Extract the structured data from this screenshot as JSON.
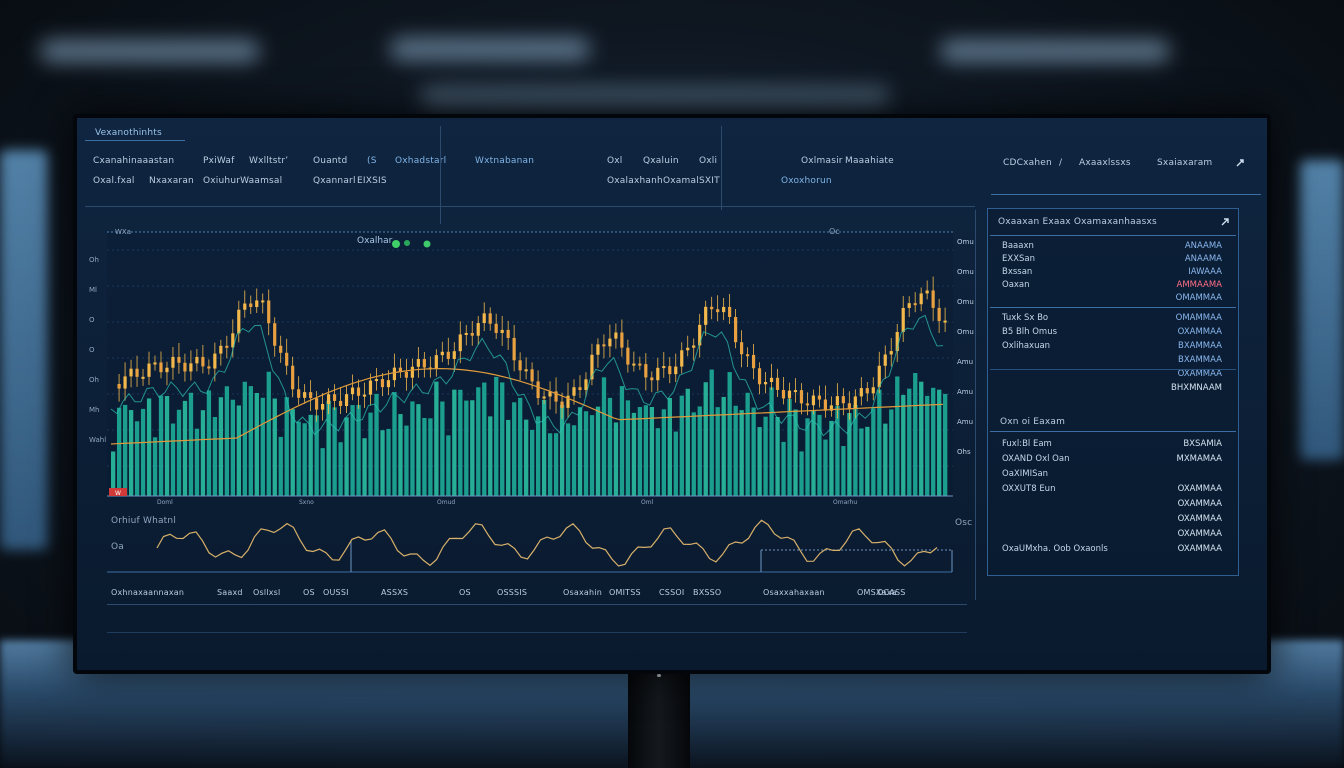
{
  "header": {
    "brand": "Vexanothinhts",
    "row1": [
      "Cxanahinaaastan",
      "PxiWaf",
      "Wxlltstr’",
      "Ouantd",
      "(S",
      "Oxhadstarl",
      "Wxtnabanan",
      "Oxl",
      "Qxaluin",
      "Oxli",
      "Oxlmasir",
      "Maaahiate"
    ],
    "row2": [
      "Oxal.fxal",
      "Nxaxaran",
      "OxiuhurWaamsal",
      "Qxannarl",
      "EIXSIS",
      "Oxalaxhanh",
      "Oxamal",
      "SXIT",
      "Oxoxhorun"
    ],
    "right_tabs": [
      "CDCxahen",
      "/",
      "Axaaxlssxs",
      "Sxaiaxaram"
    ],
    "panel_title": "Oxaaxan Exaax Oxamaxanhaasxs"
  },
  "main_chart": {
    "legend_label": "Oxalhar",
    "top_marker": "Oc",
    "corner_label": "WXa",
    "badge": "W",
    "y_left_labels": [
      "Oh",
      "Ml",
      "O",
      "O",
      "Oh",
      "Mh",
      "Wahl"
    ],
    "y_right_labels": [
      "Omu",
      "Omu",
      "Omu",
      "Omu",
      "Amu",
      "Amu",
      "Amu",
      "Ohs"
    ],
    "x_labels": [
      "Doml",
      "Sxno",
      "Omud",
      "Oml",
      "Omarhu"
    ]
  },
  "oscillator": {
    "label": "Orhiuf Whatnl",
    "start_label": "Oa",
    "right_label": "Osc"
  },
  "footer_row": [
    "Oxhnaxaannaxan",
    "Saaxd",
    "Osllxsl",
    "OS",
    "OUSSI",
    "ASSXS",
    "OS",
    "OSSSIS",
    "Osaxahin",
    "OMITSS",
    "CSSOI",
    "BXSSO",
    "Osaxxahaxaan",
    "OMSXaxa",
    "OCASS"
  ],
  "right_panel": {
    "section1": {
      "rows": [
        {
          "label": "Baaaxn",
          "value": "ANAAMA",
          "tone": "blue"
        },
        {
          "label": "EXXSan",
          "value": "ANAAMA",
          "tone": "blue"
        },
        {
          "label": "Bxssan",
          "value": "IAWAAA",
          "tone": "blue"
        },
        {
          "label": "Oaxan",
          "value": "AMMAAMA",
          "tone": "red"
        },
        {
          "label": "",
          "value": "OMAMMAA",
          "tone": "blue"
        }
      ]
    },
    "section2": {
      "rows": [
        {
          "label": "Tuxk Sx Bo",
          "value": "OMAMMAA",
          "tone": "blue"
        },
        {
          "label": "B5 Blh Omus",
          "value": "OXAMMAA",
          "tone": "blue"
        },
        {
          "label": "Oxlihaxuan",
          "value": "BXAMMAA",
          "tone": "blue"
        },
        {
          "label": "",
          "value": "BXAMMAA",
          "tone": "blue"
        },
        {
          "label": "",
          "value": "OXAMMAA",
          "tone": "blue"
        },
        {
          "label": "",
          "value": "BHXMNAAM",
          "tone": "light"
        }
      ]
    },
    "section3": {
      "title": "Oxn oi Eaxam",
      "rows": [
        {
          "label": "Fuxl:Bl Eam",
          "value": "BXSAMIA",
          "tone": "light"
        },
        {
          "label": "OXAND Oxl Oan",
          "value": "MXMAMAA",
          "tone": "light"
        },
        {
          "label": "OaXIMISan",
          "value": "",
          "tone": "light"
        },
        {
          "label": "OXXUT8 Eun",
          "value": "OXAMMAA",
          "tone": "light"
        },
        {
          "label": "",
          "value": "OXAMMAA",
          "tone": "light"
        },
        {
          "label": "",
          "value": "OXAMMAA",
          "tone": "light"
        },
        {
          "label": "",
          "value": "OXAMMAA",
          "tone": "light"
        },
        {
          "label": "OxaUMxha. Oob Oxaonls",
          "value": "OXAMMAA",
          "tone": "light"
        }
      ]
    }
  },
  "colors": {
    "accent": "#2ec4b6",
    "candle_up": "#f2b84b",
    "candle_down": "#e8a040",
    "volume": "#1fb59e",
    "ma_line": "#e09a3a",
    "grid": "#2a5585"
  }
}
